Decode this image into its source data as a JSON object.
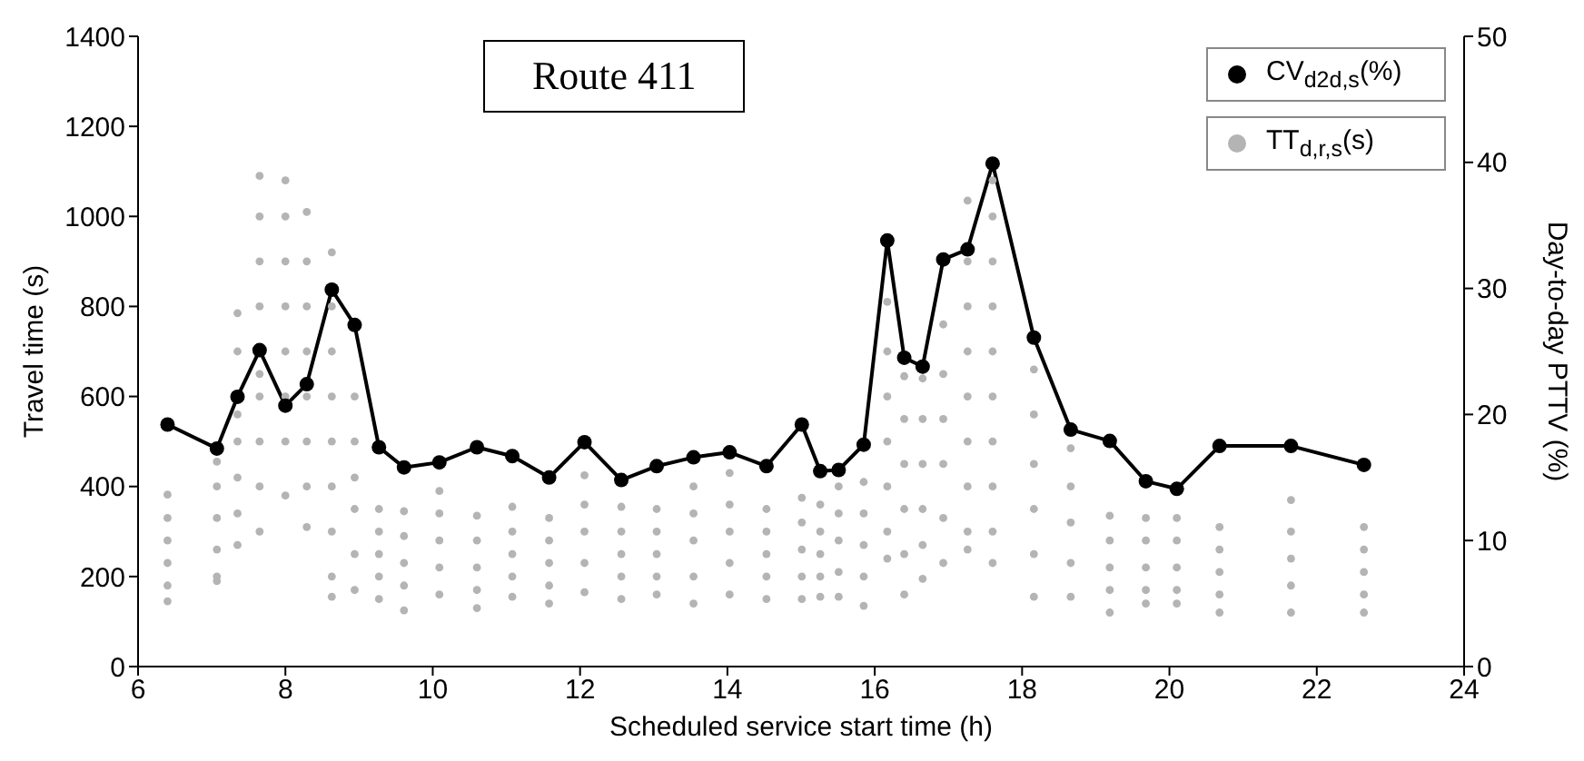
{
  "chart_data": {
    "type": "scatter",
    "title": "Route 411",
    "xlabel": "Scheduled service start time (h)",
    "ylabel": "Travel time (s)",
    "y2label": "Day-to-day PTTV (%)",
    "xlim": [
      6,
      24
    ],
    "xticks": [
      6,
      8,
      10,
      12,
      14,
      16,
      18,
      20,
      22,
      24
    ],
    "ylim": [
      0,
      1400
    ],
    "yticks": [
      0,
      200,
      400,
      600,
      800,
      1000,
      1200,
      1400
    ],
    "y2lim": [
      0,
      50
    ],
    "y2ticks": [
      0,
      10,
      20,
      30,
      40,
      50
    ],
    "legend": "top right",
    "grid": false,
    "marker": "circle",
    "series": [
      {
        "name": "CV$_{d2d,s}$(%)",
        "type": "line",
        "axis": "y2",
        "color": "#000000",
        "x": [
          6.4,
          7.07,
          7.35,
          7.65,
          8.0,
          8.29,
          8.63,
          8.94,
          9.27,
          9.61,
          10.09,
          10.6,
          11.08,
          11.58,
          12.06,
          12.56,
          13.04,
          13.54,
          14.03,
          14.53,
          15.01,
          15.26,
          15.51,
          15.85,
          16.17,
          16.4,
          16.65,
          16.93,
          17.26,
          17.6,
          18.16,
          18.66,
          19.19,
          19.68,
          20.1,
          20.68,
          21.65,
          22.64
        ],
        "values": [
          19.2,
          17.3,
          21.4,
          25.1,
          20.7,
          22.4,
          29.9,
          27.1,
          17.4,
          15.8,
          16.2,
          17.4,
          16.7,
          15.0,
          17.8,
          14.8,
          15.9,
          16.6,
          17.0,
          15.9,
          19.2,
          15.5,
          15.6,
          17.6,
          33.8,
          24.5,
          23.8,
          32.3,
          33.1,
          39.9,
          26.1,
          18.8,
          17.9,
          14.7,
          14.1,
          17.5,
          17.5,
          16.0
        ]
      },
      {
        "name": "TT$_{d,r,s}$(s)",
        "color": "#b4b4b4",
        "x": [
          6.4,
          6.4,
          6.4,
          6.4,
          6.4,
          6.4,
          7.07,
          7.07,
          7.07,
          7.07,
          7.07,
          7.07,
          7.35,
          7.35,
          7.35,
          7.35,
          7.35,
          7.35,
          7.35,
          7.65,
          7.65,
          7.65,
          7.65,
          7.65,
          7.65,
          7.65,
          7.65,
          7.65,
          8.0,
          8.0,
          8.0,
          8.0,
          8.0,
          8.0,
          8.0,
          8.0,
          8.29,
          8.29,
          8.29,
          8.29,
          8.29,
          8.29,
          8.29,
          8.29,
          8.63,
          8.63,
          8.63,
          8.63,
          8.63,
          8.63,
          8.63,
          8.63,
          8.63,
          8.94,
          8.94,
          8.94,
          8.94,
          8.94,
          8.94,
          9.27,
          9.27,
          9.27,
          9.27,
          9.27,
          9.61,
          9.61,
          9.61,
          9.61,
          9.61,
          10.09,
          10.09,
          10.09,
          10.09,
          10.09,
          10.6,
          10.6,
          10.6,
          10.6,
          10.6,
          11.08,
          11.08,
          11.08,
          11.08,
          11.08,
          11.58,
          11.58,
          11.58,
          11.58,
          11.58,
          12.06,
          12.06,
          12.06,
          12.06,
          12.06,
          12.56,
          12.56,
          12.56,
          12.56,
          12.56,
          13.04,
          13.04,
          13.04,
          13.04,
          13.04,
          13.54,
          13.54,
          13.54,
          13.54,
          13.54,
          14.03,
          14.03,
          14.03,
          14.03,
          14.03,
          14.53,
          14.53,
          14.53,
          14.53,
          14.53,
          15.01,
          15.01,
          15.01,
          15.01,
          15.01,
          15.26,
          15.26,
          15.26,
          15.26,
          15.26,
          15.51,
          15.51,
          15.51,
          15.51,
          15.51,
          15.85,
          15.85,
          15.85,
          15.85,
          15.85,
          16.17,
          16.17,
          16.17,
          16.17,
          16.17,
          16.17,
          16.17,
          16.4,
          16.4,
          16.4,
          16.4,
          16.4,
          16.4,
          16.65,
          16.65,
          16.65,
          16.65,
          16.65,
          16.65,
          16.93,
          16.93,
          16.93,
          16.93,
          16.93,
          16.93,
          17.26,
          17.26,
          17.26,
          17.26,
          17.26,
          17.26,
          17.26,
          17.26,
          17.26,
          17.6,
          17.6,
          17.6,
          17.6,
          17.6,
          17.6,
          17.6,
          17.6,
          17.6,
          17.6,
          18.16,
          18.16,
          18.16,
          18.16,
          18.16,
          18.16,
          18.66,
          18.66,
          18.66,
          18.66,
          18.66,
          19.19,
          19.19,
          19.19,
          19.19,
          19.19,
          19.68,
          19.68,
          19.68,
          19.68,
          19.68,
          20.1,
          20.1,
          20.1,
          20.1,
          20.1,
          20.68,
          20.68,
          20.68,
          20.68,
          20.68,
          21.65,
          21.65,
          21.65,
          21.65,
          21.65,
          22.64,
          22.64,
          22.64,
          22.64,
          22.64
        ],
        "values": [
          382,
          330,
          280,
          230,
          180,
          145,
          455,
          400,
          330,
          260,
          200,
          190,
          785,
          700,
          560,
          500,
          420,
          340,
          270,
          1090,
          1000,
          900,
          800,
          650,
          600,
          500,
          400,
          300,
          1080,
          1000,
          900,
          800,
          700,
          600,
          500,
          380,
          1010,
          900,
          800,
          700,
          600,
          500,
          400,
          310,
          920,
          800,
          700,
          600,
          500,
          400,
          300,
          200,
          155,
          600,
          500,
          420,
          350,
          250,
          170,
          350,
          300,
          250,
          200,
          150,
          345,
          290,
          230,
          180,
          125,
          390,
          340,
          280,
          220,
          160,
          335,
          280,
          220,
          170,
          130,
          355,
          300,
          250,
          200,
          155,
          330,
          280,
          230,
          180,
          140,
          425,
          360,
          300,
          230,
          165,
          355,
          300,
          250,
          200,
          150,
          350,
          300,
          250,
          200,
          160,
          400,
          340,
          280,
          200,
          140,
          430,
          360,
          300,
          230,
          160,
          350,
          300,
          250,
          200,
          150,
          375,
          320,
          260,
          200,
          150,
          360,
          300,
          250,
          200,
          155,
          400,
          340,
          280,
          210,
          155,
          410,
          340,
          270,
          200,
          135,
          810,
          700,
          600,
          500,
          400,
          300,
          240,
          645,
          550,
          450,
          350,
          250,
          160,
          640,
          550,
          450,
          350,
          270,
          195,
          760,
          650,
          550,
          450,
          330,
          230,
          1035,
          900,
          800,
          700,
          600,
          500,
          400,
          300,
          260,
          1080,
          1000,
          900,
          800,
          700,
          600,
          500,
          400,
          300,
          230,
          660,
          560,
          450,
          350,
          250,
          155,
          485,
          400,
          320,
          230,
          155,
          335,
          280,
          220,
          170,
          120,
          330,
          280,
          220,
          170,
          140,
          330,
          280,
          220,
          170,
          140,
          310,
          260,
          210,
          160,
          120,
          370,
          300,
          240,
          180,
          120,
          310,
          260,
          210,
          160,
          120
        ]
      }
    ]
  }
}
